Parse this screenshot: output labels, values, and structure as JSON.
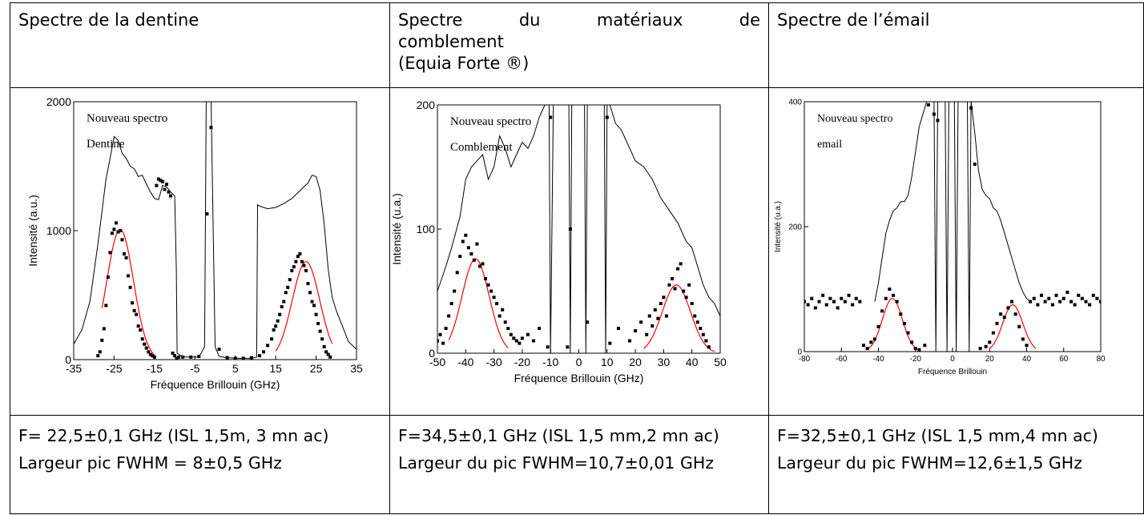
{
  "headers": [
    {
      "text": "Spectre de la dentine"
    },
    {
      "line1": [
        "Spectre",
        "du",
        "matériaux",
        "de"
      ],
      "line2": "comblement",
      "line3": "(Equia Forte ®)"
    },
    {
      "text": "Spectre de l’émail"
    }
  ],
  "footers": [
    {
      "line1": "F= 22,5±0,1 GHz (ISL 1,5m, 3 mn ac)",
      "line2": "Largeur pic FWHM = 8±0,5 GHz"
    },
    {
      "line1": "F=34,5±0,1 GHz (ISL 1,5 mm,2 mn ac)",
      "line2": "Largeur du pic FWHM=10,7±0,01 GHz"
    },
    {
      "line1": "F=32,5±0,1 GHz (ISL 1,5 mm,4 mn ac)",
      "line2": "Largeur du pic FWHM=12,6±1,5 GHz"
    }
  ],
  "colors": {
    "raw": "#000000",
    "fit": "#ff0000",
    "points": "#000000"
  },
  "chart_data": [
    {
      "type": "line",
      "annotation": [
        "Nouveau spectro",
        "Dentine"
      ],
      "xlabel": "Fréquence Brillouin (GHz)",
      "ylabel": "Intensité (a.u.)",
      "xlim": [
        -35,
        35
      ],
      "ylim": [
        0,
        2000
      ],
      "xticks": [
        -35,
        -25,
        -15,
        -5,
        5,
        15,
        25,
        35
      ],
      "yticks": [
        0,
        1000,
        2000
      ],
      "raw_curve": {
        "x": [
          -35,
          -33,
          -31,
          -29,
          -28,
          -27,
          -26,
          -25,
          -24,
          -23,
          -22,
          -21,
          -20,
          -19,
          -18,
          -17,
          -16,
          -15,
          -14,
          -13,
          -12,
          -11,
          -10,
          -9.6,
          -9.4,
          -8,
          -6,
          -4,
          -2.6,
          -2.2,
          -1.8,
          -1.4,
          -1,
          0,
          1,
          3,
          6,
          9,
          10.3,
          10.5,
          11,
          13,
          15,
          17,
          19,
          21,
          23,
          24,
          25,
          26,
          27,
          28,
          29,
          30,
          31,
          32,
          33,
          35
        ],
        "y": [
          120,
          230,
          450,
          900,
          1150,
          1400,
          1560,
          1730,
          1700,
          1600,
          1560,
          1500,
          1480,
          1420,
          1430,
          1360,
          1300,
          1250,
          1240,
          1350,
          1340,
          1300,
          1270,
          700,
          50,
          20,
          20,
          20,
          100,
          2000,
          2000,
          2000,
          2000,
          100,
          25,
          15,
          10,
          10,
          20,
          1200,
          1190,
          1170,
          1180,
          1210,
          1250,
          1310,
          1370,
          1430,
          1420,
          1310,
          1050,
          700,
          480,
          380,
          300,
          220,
          140,
          80
        ]
      },
      "fit": {
        "center": -23.5,
        "amplitude": 1010,
        "sigma": 3.3,
        "x_range": [
          -28,
          -15
        ],
        "center2": 22.5,
        "amplitude2": 760,
        "sigma2": 3.4,
        "x_range2": [
          15,
          29
        ]
      },
      "points": {
        "x": [
          -29,
          -28.5,
          -28,
          -27.5,
          -27,
          -26.5,
          -26,
          -25.5,
          -25,
          -24.5,
          -24,
          -23.5,
          -23,
          -22.5,
          -22,
          -21.5,
          -21,
          -20.5,
          -20,
          -19.5,
          -19,
          -18.5,
          -18,
          -17.5,
          -17,
          -16.5,
          -16,
          -15.5,
          -15,
          -14.5,
          -14,
          -13.5,
          -13,
          -12.5,
          -12,
          -11.5,
          -11,
          -10.5,
          -10,
          -9.5,
          -9,
          -8,
          -6,
          -4,
          -2,
          -1,
          1,
          3,
          5,
          7,
          9,
          11,
          12,
          13,
          14,
          14.5,
          15,
          15.5,
          16,
          16.5,
          17,
          17.5,
          18,
          18.5,
          19,
          19.5,
          20,
          20.5,
          21,
          21.5,
          22,
          22.5,
          23,
          23.5,
          24,
          24.5,
          25,
          25.5,
          26,
          26.5,
          27,
          27.5,
          28,
          28.5
        ],
        "y": [
          30,
          60,
          150,
          240,
          420,
          640,
          830,
          980,
          1010,
          1060,
          990,
          1000,
          930,
          820,
          790,
          650,
          560,
          440,
          380,
          350,
          260,
          230,
          160,
          120,
          90,
          60,
          40,
          30,
          20,
          1350,
          1400,
          1390,
          1380,
          1320,
          1360,
          1300,
          1270,
          50,
          30,
          10,
          20,
          20,
          20,
          25,
          1130,
          1800,
          80,
          15,
          10,
          10,
          15,
          30,
          60,
          110,
          160,
          230,
          260,
          300,
          350,
          410,
          450,
          520,
          560,
          620,
          690,
          720,
          760,
          800,
          820,
          760,
          730,
          690,
          590,
          520,
          450,
          420,
          350,
          280,
          220,
          160,
          100,
          60,
          40,
          20
        ]
      }
    },
    {
      "type": "line",
      "annotation": [
        "Nouveau spectro",
        "Comblement"
      ],
      "xlabel": "Fréquence Brillouin (GHz)",
      "ylabel": "Intensité (u.a.)",
      "xlim": [
        -50,
        50
      ],
      "ylim": [
        0,
        200
      ],
      "xticks": [
        -50,
        -40,
        -30,
        -20,
        -10,
        0,
        10,
        20,
        30,
        40,
        50
      ],
      "yticks": [
        0,
        100,
        200
      ],
      "raw_curve": {
        "x": [
          -50,
          -47,
          -45,
          -42,
          -40,
          -38,
          -36,
          -34,
          -32,
          -30,
          -28,
          -26,
          -24,
          -22,
          -20,
          -18,
          -16,
          -14,
          -12,
          -11,
          -10.5,
          -10,
          -9,
          -6,
          -3.5,
          -3,
          -2.5,
          -2,
          -1,
          0,
          1,
          2,
          2.5,
          3,
          4,
          6,
          9,
          9.5,
          10,
          11,
          13,
          15,
          17,
          20,
          23,
          26,
          29,
          32,
          35,
          38,
          40,
          42,
          44,
          46,
          48,
          50
        ],
        "y": [
          50,
          70,
          85,
          110,
          140,
          150,
          155,
          160,
          140,
          150,
          175,
          165,
          150,
          160,
          170,
          165,
          175,
          190,
          200,
          200,
          200,
          0,
          200,
          200,
          200,
          0,
          200,
          200,
          200,
          200,
          200,
          200,
          0,
          200,
          200,
          200,
          200,
          0,
          200,
          200,
          185,
          180,
          170,
          155,
          150,
          140,
          125,
          115,
          105,
          90,
          85,
          70,
          55,
          45,
          40,
          30
        ]
      },
      "fit": {
        "center": -36.5,
        "amplitude": 76,
        "sigma": 4.8,
        "x_range": [
          -46,
          -25
        ],
        "center2": 34.5,
        "amplitude2": 55,
        "sigma2": 5.0,
        "x_range2": [
          23,
          48
        ]
      },
      "points": {
        "x": [
          -50,
          -49,
          -48,
          -47,
          -46,
          -45,
          -44,
          -43,
          -42,
          -41,
          -40,
          -39,
          -38,
          -37,
          -36,
          -35,
          -34,
          -33,
          -32,
          -31,
          -30,
          -29,
          -28,
          -27,
          -26,
          -25,
          -24,
          -23,
          -22,
          -21,
          -20,
          -18,
          -16,
          -14,
          -11,
          -10,
          -4,
          -3,
          3,
          10,
          11,
          14,
          18,
          20,
          22,
          24,
          25,
          26,
          27,
          28,
          29,
          30,
          31,
          32,
          33,
          34,
          35,
          36,
          37,
          38,
          39,
          40,
          41,
          42,
          43,
          44,
          45,
          46
        ],
        "y": [
          10,
          15,
          8,
          20,
          30,
          40,
          50,
          65,
          78,
          90,
          95,
          85,
          80,
          75,
          88,
          70,
          72,
          60,
          55,
          50,
          45,
          40,
          30,
          35,
          25,
          20,
          15,
          12,
          10,
          8,
          12,
          15,
          10,
          20,
          5,
          190,
          5,
          100,
          25,
          190,
          8,
          20,
          10,
          18,
          25,
          15,
          30,
          22,
          35,
          28,
          40,
          45,
          30,
          55,
          60,
          52,
          68,
          72,
          50,
          45,
          55,
          40,
          30,
          25,
          20,
          15,
          10,
          5
        ]
      }
    },
    {
      "type": "line",
      "annotation": [
        "Nouveau spectro",
        "email"
      ],
      "xlabel": "Fréquence Brillouin",
      "ylabel": "Intensité (u.a.)",
      "xlim": [
        -80,
        80
      ],
      "ylim": [
        0,
        400
      ],
      "xticks": [
        -80,
        -60,
        -40,
        -20,
        0,
        20,
        40,
        60,
        80
      ],
      "yticks": [
        0,
        200,
        400
      ],
      "raw_curve": {
        "x": [
          -42,
          -40,
          -38,
          -36,
          -34,
          -32,
          -30,
          -28,
          -26,
          -24,
          -22,
          -20,
          -18,
          -16,
          -14,
          -12,
          -10,
          -9,
          -8,
          -7,
          -4,
          -3,
          -2,
          1,
          2,
          3,
          6,
          7,
          8,
          9,
          10,
          12,
          14,
          16,
          18,
          20,
          22,
          24,
          26,
          28,
          30,
          32,
          34,
          36,
          38,
          40,
          42
        ],
        "y": [
          80,
          110,
          150,
          190,
          210,
          225,
          230,
          240,
          240,
          250,
          280,
          320,
          360,
          380,
          400,
          400,
          400,
          0,
          400,
          400,
          400,
          0,
          400,
          400,
          0,
          400,
          400,
          400,
          400,
          0,
          400,
          350,
          290,
          260,
          250,
          245,
          230,
          225,
          210,
          190,
          170,
          150,
          130,
          110,
          95,
          85,
          80
        ]
      },
      "fit": {
        "center": -32.5,
        "amplitude": 85,
        "sigma": 5.4,
        "x_range": [
          -46,
          -20
        ],
        "center2": 32.5,
        "amplitude2": 75,
        "sigma2": 5.4,
        "x_range2": [
          20,
          45
        ]
      },
      "points": {
        "x": [
          -80,
          -78,
          -76,
          -74,
          -72,
          -70,
          -68,
          -66,
          -64,
          -62,
          -60,
          -58,
          -56,
          -54,
          -52,
          -50,
          -48,
          -46,
          -44,
          -42,
          -40,
          -38,
          -36,
          -34,
          -32,
          -30,
          -28,
          -26,
          -24,
          -22,
          -20,
          -18,
          -15,
          -13,
          -10,
          -8,
          10,
          12,
          15,
          18,
          20,
          22,
          24,
          26,
          28,
          30,
          32,
          34,
          36,
          38,
          40,
          42,
          44,
          46,
          48,
          50,
          52,
          54,
          56,
          58,
          60,
          62,
          64,
          66,
          68,
          70,
          72,
          74,
          76,
          78,
          80
        ],
        "y": [
          80,
          75,
          85,
          70,
          80,
          90,
          75,
          85,
          80,
          70,
          85,
          80,
          90,
          75,
          85,
          80,
          10,
          5,
          15,
          20,
          40,
          65,
          85,
          100,
          90,
          80,
          60,
          45,
          30,
          15,
          5,
          3,
          10,
          395,
          380,
          370,
          390,
          300,
          5,
          8,
          15,
          30,
          45,
          60,
          55,
          70,
          80,
          60,
          40,
          20,
          10,
          80,
          85,
          75,
          90,
          80,
          85,
          75,
          90,
          80,
          85,
          95,
          80,
          75,
          90,
          85,
          80,
          75,
          90,
          85,
          80
        ]
      }
    }
  ]
}
